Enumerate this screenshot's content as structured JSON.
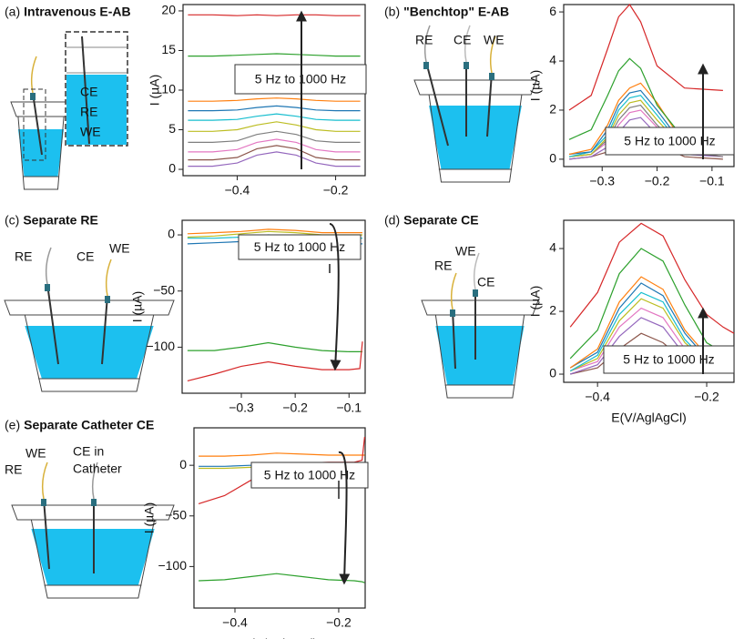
{
  "chart_data": [
    {
      "type": "line",
      "panel": "(a)",
      "title": "Intravenous E-AB",
      "ylabel": "I (µA)",
      "annotation": "5 Hz to 1000 Hz",
      "diagram_labels": [
        "CE",
        "RE",
        "WE"
      ],
      "xlim": [
        -0.51,
        -0.14
      ],
      "ylim": [
        -0.8,
        20.8
      ],
      "xticks": [
        {
          "value": -0.4,
          "label": "−0.4"
        },
        {
          "value": -0.2,
          "label": "−0.2"
        }
      ],
      "yticks": [
        0,
        5,
        10,
        15,
        20
      ],
      "x": [
        -0.5,
        -0.45,
        -0.4,
        -0.36,
        -0.32,
        -0.28,
        -0.24,
        -0.2,
        -0.15
      ],
      "series": [
        {
          "color": "#d62728",
          "values": [
            19.5,
            19.5,
            19.4,
            19.5,
            19.4,
            19.5,
            19.5,
            19.4,
            19.4
          ]
        },
        {
          "color": "#2ca02c",
          "values": [
            14.3,
            14.3,
            14.4,
            14.5,
            14.6,
            14.5,
            14.4,
            14.3,
            14.3
          ]
        },
        {
          "color": "#ff7f0e",
          "values": [
            8.6,
            8.6,
            8.7,
            8.9,
            9.0,
            8.9,
            8.7,
            8.6,
            8.6
          ]
        },
        {
          "color": "#1f77b4",
          "values": [
            7.4,
            7.4,
            7.5,
            7.8,
            8.0,
            7.8,
            7.5,
            7.4,
            7.4
          ]
        },
        {
          "color": "#17becf",
          "values": [
            6.2,
            6.2,
            6.3,
            6.7,
            7.0,
            6.7,
            6.3,
            6.2,
            6.2
          ]
        },
        {
          "color": "#bcbd22",
          "values": [
            4.8,
            4.8,
            5.0,
            5.6,
            6.0,
            5.6,
            5.0,
            4.8,
            4.8
          ]
        },
        {
          "color": "#7f7f7f",
          "values": [
            3.4,
            3.4,
            3.6,
            4.4,
            4.8,
            4.4,
            3.6,
            3.4,
            3.4
          ]
        },
        {
          "color": "#e377c2",
          "values": [
            2.2,
            2.2,
            2.5,
            3.4,
            3.8,
            3.4,
            2.5,
            2.2,
            2.2
          ]
        },
        {
          "color": "#8c564b",
          "values": [
            1.2,
            1.2,
            1.5,
            2.6,
            3.0,
            2.6,
            1.5,
            1.2,
            1.2
          ]
        },
        {
          "color": "#9467bd",
          "values": [
            0.4,
            0.4,
            0.8,
            1.8,
            2.2,
            1.8,
            0.8,
            0.4,
            0.4
          ]
        }
      ]
    },
    {
      "type": "line",
      "panel": "(b)",
      "title": "\"Benchtop\" E-AB",
      "ylabel": "I (µA)",
      "annotation": "5 Hz to 1000 Hz",
      "diagram_labels": [
        "RE",
        "CE",
        "WE"
      ],
      "xlim": [
        -0.37,
        -0.06
      ],
      "ylim": [
        -0.3,
        6.3
      ],
      "xticks": [
        {
          "value": -0.3,
          "label": "−0.3"
        },
        {
          "value": -0.2,
          "label": "−0.2"
        },
        {
          "value": -0.1,
          "label": "−0.1"
        }
      ],
      "yticks": [
        0,
        2,
        4,
        6
      ],
      "x": [
        -0.36,
        -0.32,
        -0.29,
        -0.27,
        -0.25,
        -0.23,
        -0.2,
        -0.15,
        -0.08
      ],
      "series": [
        {
          "color": "#d62728",
          "values": [
            2.0,
            2.6,
            4.5,
            5.8,
            6.3,
            5.6,
            3.8,
            2.9,
            2.8
          ]
        },
        {
          "color": "#2ca02c",
          "values": [
            0.8,
            1.2,
            2.6,
            3.6,
            4.1,
            3.7,
            2.2,
            0.8,
            0.5
          ]
        },
        {
          "color": "#ff7f0e",
          "values": [
            0.2,
            0.4,
            1.4,
            2.4,
            2.9,
            3.1,
            2.3,
            0.6,
            0.3
          ]
        },
        {
          "color": "#1f77b4",
          "values": [
            0.2,
            0.3,
            1.2,
            2.2,
            2.7,
            2.8,
            2.0,
            0.5,
            0.2
          ]
        },
        {
          "color": "#17becf",
          "values": [
            0.1,
            0.3,
            1.0,
            2.0,
            2.5,
            2.6,
            1.8,
            0.4,
            0.2
          ]
        },
        {
          "color": "#bcbd22",
          "values": [
            0.1,
            0.2,
            0.9,
            1.8,
            2.3,
            2.4,
            1.6,
            0.4,
            0.2
          ]
        },
        {
          "color": "#7f7f7f",
          "values": [
            0.1,
            0.2,
            0.8,
            1.6,
            2.1,
            2.2,
            1.4,
            0.3,
            0.1
          ]
        },
        {
          "color": "#e377c2",
          "values": [
            0.1,
            0.2,
            0.7,
            1.4,
            1.9,
            2.0,
            1.3,
            0.3,
            0.1
          ]
        },
        {
          "color": "#9467bd",
          "values": [
            0.0,
            0.1,
            0.5,
            1.1,
            1.6,
            1.7,
            1.0,
            0.2,
            0.1
          ]
        },
        {
          "color": "#8c564b",
          "values": [
            0.0,
            0.1,
            0.3,
            0.7,
            1.1,
            1.2,
            0.6,
            0.1,
            0.0
          ]
        }
      ]
    },
    {
      "type": "line",
      "panel": "(c)",
      "title": "Separate RE",
      "ylabel": "I (µA)",
      "annotation": "5 Hz to 1000 Hz",
      "diagram_labels": [
        "RE",
        "CE",
        "WE"
      ],
      "xlim": [
        -0.41,
        -0.07
      ],
      "ylim": [
        -141,
        13
      ],
      "xticks": [
        {
          "value": -0.3,
          "label": "−0.3"
        },
        {
          "value": -0.2,
          "label": "−0.2"
        },
        {
          "value": -0.1,
          "label": "−0.1"
        }
      ],
      "yticks": [
        {
          "value": -100,
          "label": "−100"
        },
        {
          "value": -50,
          "label": "−50"
        },
        0
      ],
      "x": [
        -0.4,
        -0.35,
        -0.3,
        -0.25,
        -0.2,
        -0.15,
        -0.1,
        -0.08,
        -0.075
      ],
      "series": [
        {
          "color": "#d62728",
          "values": [
            -130,
            -124,
            -117,
            -113,
            -117,
            -120,
            -120,
            -119,
            -95
          ]
        },
        {
          "color": "#2ca02c",
          "values": [
            -103,
            -103,
            -100,
            -96,
            -100,
            -103,
            -104,
            -104,
            -104
          ]
        },
        {
          "color": "#ff7f0e",
          "values": [
            1,
            2,
            3,
            5,
            4,
            2,
            2,
            2,
            2
          ]
        },
        {
          "color": "#bcbd22",
          "values": [
            -2,
            -1,
            1,
            3,
            2,
            0,
            0,
            0,
            0
          ]
        },
        {
          "color": "#1f77b4",
          "values": [
            -8,
            -7,
            -6,
            -4,
            -5,
            -7,
            -8,
            -8,
            -8
          ]
        },
        {
          "color": "#17becf",
          "values": [
            -3,
            -3,
            -2,
            0,
            -1,
            -2,
            -3,
            -3,
            -3
          ]
        }
      ]
    },
    {
      "type": "line",
      "panel": "(d)",
      "title": "Separate CE",
      "ylabel": "I (µA)",
      "xlabel": "E(V/AglAgCl)",
      "annotation": "5 Hz to 1000 Hz",
      "diagram_labels": [
        "WE",
        "RE",
        "CE"
      ],
      "xlim": [
        -0.462,
        -0.15
      ],
      "ylim": [
        -0.26,
        4.9
      ],
      "xticks": [
        {
          "value": -0.4,
          "label": "−0.4"
        },
        {
          "value": -0.2,
          "label": "−0.2"
        }
      ],
      "yticks": [
        0,
        2,
        4
      ],
      "x": [
        -0.45,
        -0.4,
        -0.36,
        -0.32,
        -0.28,
        -0.24,
        -0.2,
        -0.17,
        -0.15
      ],
      "series": [
        {
          "color": "#d62728",
          "values": [
            1.5,
            2.6,
            4.2,
            4.8,
            4.4,
            3.0,
            1.9,
            1.5,
            1.3
          ]
        },
        {
          "color": "#2ca02c",
          "values": [
            0.5,
            1.4,
            3.2,
            4.0,
            3.6,
            2.2,
            1.0,
            0.7,
            0.6
          ]
        },
        {
          "color": "#ff7f0e",
          "values": [
            0.2,
            0.8,
            2.3,
            3.1,
            2.7,
            1.4,
            0.6,
            0.5,
            0.5
          ]
        },
        {
          "color": "#1f77b4",
          "values": [
            0.2,
            0.7,
            2.1,
            2.9,
            2.5,
            1.3,
            0.5,
            0.4,
            0.4
          ]
        },
        {
          "color": "#17becf",
          "values": [
            0.1,
            0.6,
            1.9,
            2.6,
            2.3,
            1.1,
            0.4,
            0.3,
            0.3
          ]
        },
        {
          "color": "#bcbd22",
          "values": [
            0.1,
            0.5,
            1.7,
            2.4,
            2.1,
            1.0,
            0.4,
            0.3,
            0.3
          ]
        },
        {
          "color": "#e377c2",
          "values": [
            0.1,
            0.4,
            1.5,
            2.1,
            1.8,
            0.8,
            0.3,
            0.2,
            0.2
          ]
        },
        {
          "color": "#9467bd",
          "values": [
            0.0,
            0.3,
            1.2,
            1.8,
            1.5,
            0.6,
            0.2,
            0.2,
            0.2
          ]
        },
        {
          "color": "#8c564b",
          "values": [
            0.0,
            0.2,
            0.8,
            1.3,
            1.0,
            0.4,
            0.1,
            0.1,
            0.1
          ]
        }
      ]
    },
    {
      "type": "line",
      "panel": "(e)",
      "title": "Separate Catheter CE",
      "ylabel": "I (µA)",
      "xlabel": "E(V/AglAgCl)",
      "annotation": "5 Hz to 1000 Hz",
      "diagram_labels": [
        "RE",
        "WE",
        "CE in",
        "Catheter"
      ],
      "xlim": [
        -0.479,
        -0.149
      ],
      "ylim": [
        -141,
        37
      ],
      "xticks": [
        {
          "value": -0.4,
          "label": "−0.4"
        },
        {
          "value": -0.2,
          "label": "−0.2"
        }
      ],
      "yticks": [
        {
          "value": -100,
          "label": "−100"
        },
        {
          "value": -50,
          "label": "−50"
        },
        0
      ],
      "x": [
        -0.47,
        -0.42,
        -0.37,
        -0.32,
        -0.27,
        -0.22,
        -0.17,
        -0.155,
        -0.15
      ],
      "series": [
        {
          "color": "#d62728",
          "values": [
            -38,
            -30,
            -15,
            -2,
            2,
            3,
            3,
            5,
            28
          ]
        },
        {
          "color": "#ff7f0e",
          "values": [
            9,
            9,
            10,
            12,
            11,
            10,
            10,
            10,
            10
          ]
        },
        {
          "color": "#1f77b4",
          "values": [
            -1,
            -1,
            0,
            1,
            0,
            -1,
            -1,
            -1,
            -1
          ]
        },
        {
          "color": "#bcbd22",
          "values": [
            -3,
            -3,
            -2,
            -1,
            -2,
            -3,
            -3,
            -3,
            -3
          ]
        },
        {
          "color": "#2ca02c",
          "values": [
            -114,
            -113,
            -110,
            -107,
            -110,
            -113,
            -114,
            -115,
            -116
          ]
        }
      ]
    }
  ]
}
